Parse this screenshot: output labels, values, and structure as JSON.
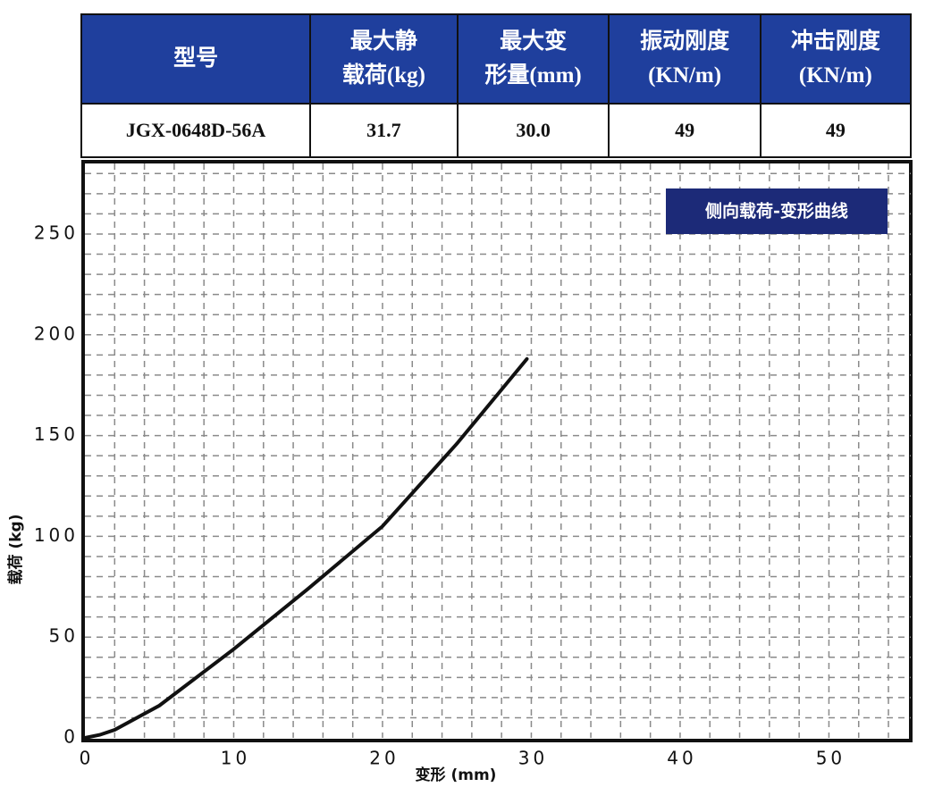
{
  "table": {
    "header": [
      [
        "型号"
      ],
      [
        "最大静",
        "载荷(kg)"
      ],
      [
        "最大变",
        "形量(mm)"
      ],
      [
        "振动刚度",
        "(KN/m)"
      ],
      [
        "冲击刚度",
        "(KN/m)"
      ]
    ],
    "rows": [
      [
        "JGX-0648D-56A",
        "31.7",
        "30.0",
        "49",
        "49"
      ]
    ]
  },
  "chart_data": {
    "type": "line",
    "title": "侧向载荷-变形曲线",
    "x_label": "变形 (mm)",
    "y_label": "载荷 (kg)",
    "x": [
      0,
      1,
      2,
      5,
      10,
      15,
      20,
      25,
      29.7
    ],
    "values": [
      0,
      1.5,
      4,
      16,
      44,
      74,
      105,
      146,
      188
    ],
    "color": "#111111",
    "xlim": [
      0,
      55.5
    ],
    "ylim": [
      0,
      285
    ],
    "xticks": [
      0,
      10,
      20,
      30,
      40,
      50
    ],
    "yticks": [
      0,
      50,
      100,
      150,
      200,
      250
    ],
    "xgrid": [
      2,
      4,
      6,
      8,
      10,
      12,
      14,
      16,
      18,
      20,
      22,
      24,
      26,
      28,
      30,
      32,
      34,
      36,
      38,
      40,
      42,
      44,
      46,
      48,
      50,
      52,
      54
    ],
    "ygrid": [
      10,
      20,
      30,
      40,
      50,
      60,
      70,
      80,
      90,
      100,
      110,
      120,
      130,
      140,
      150,
      160,
      170,
      180,
      190,
      200,
      210,
      220,
      230,
      240,
      250,
      260,
      270,
      280
    ],
    "grid": true
  }
}
